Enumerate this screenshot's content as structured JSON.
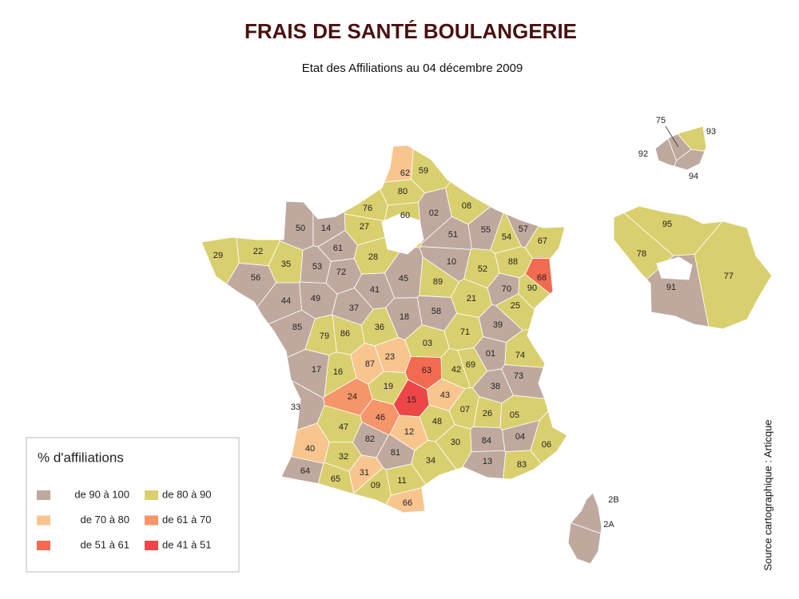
{
  "title": "FRAIS DE SANTÉ BOULANGERIE",
  "subtitle": "Etat des Affiliations au 04 décembre 2009",
  "source": "Source cartographique : Articque",
  "legend": {
    "title": "% d'affiliations",
    "classes": [
      {
        "label": "de 90 à 100",
        "color": "#bfa99f"
      },
      {
        "label": "de 80 à 90",
        "color": "#d9cf6e"
      },
      {
        "label": "de 70 à 80",
        "color": "#f8c58f"
      },
      {
        "label": "de 61 à 70",
        "color": "#f5956a"
      },
      {
        "label": "de 51 à 61",
        "color": "#f26b50"
      },
      {
        "label": "de 41 à 51",
        "color": "#ee4647"
      }
    ]
  },
  "departments": [
    {
      "code": "62",
      "class": 2
    },
    {
      "code": "59",
      "class": 1
    },
    {
      "code": "80",
      "class": 1
    },
    {
      "code": "76",
      "class": 1
    },
    {
      "code": "60",
      "class": 1
    },
    {
      "code": "02",
      "class": 0
    },
    {
      "code": "08",
      "class": 1
    },
    {
      "code": "50",
      "class": 0
    },
    {
      "code": "14",
      "class": 0
    },
    {
      "code": "27",
      "class": 1
    },
    {
      "code": "51",
      "class": 0
    },
    {
      "code": "55",
      "class": 0
    },
    {
      "code": "57",
      "class": 0
    },
    {
      "code": "54",
      "class": 1
    },
    {
      "code": "67",
      "class": 1
    },
    {
      "code": "29",
      "class": 1
    },
    {
      "code": "22",
      "class": 1
    },
    {
      "code": "35",
      "class": 1
    },
    {
      "code": "61",
      "class": 0
    },
    {
      "code": "28",
      "class": 1
    },
    {
      "code": "53",
      "class": 0
    },
    {
      "code": "72",
      "class": 0
    },
    {
      "code": "56",
      "class": 0
    },
    {
      "code": "10",
      "class": 0
    },
    {
      "code": "52",
      "class": 1
    },
    {
      "code": "88",
      "class": 1
    },
    {
      "code": "68",
      "class": 4
    },
    {
      "code": "45",
      "class": 0
    },
    {
      "code": "89",
      "class": 1
    },
    {
      "code": "41",
      "class": 0
    },
    {
      "code": "44",
      "class": 0
    },
    {
      "code": "49",
      "class": 0
    },
    {
      "code": "37",
      "class": 0
    },
    {
      "code": "70",
      "class": 0
    },
    {
      "code": "90",
      "class": 1
    },
    {
      "code": "21",
      "class": 1
    },
    {
      "code": "25",
      "class": 1
    },
    {
      "code": "18",
      "class": 0
    },
    {
      "code": "58",
      "class": 0
    },
    {
      "code": "85",
      "class": 0
    },
    {
      "code": "79",
      "class": 1
    },
    {
      "code": "86",
      "class": 1
    },
    {
      "code": "36",
      "class": 1
    },
    {
      "code": "71",
      "class": 1
    },
    {
      "code": "39",
      "class": 0
    },
    {
      "code": "03",
      "class": 1
    },
    {
      "code": "74",
      "class": 1
    },
    {
      "code": "01",
      "class": 0
    },
    {
      "code": "17",
      "class": 0
    },
    {
      "code": "16",
      "class": 1
    },
    {
      "code": "87",
      "class": 2
    },
    {
      "code": "23",
      "class": 2
    },
    {
      "code": "63",
      "class": 4
    },
    {
      "code": "42",
      "class": 1
    },
    {
      "code": "69",
      "class": 1
    },
    {
      "code": "73",
      "class": 0
    },
    {
      "code": "38",
      "class": 0
    },
    {
      "code": "19",
      "class": 1
    },
    {
      "code": "24",
      "class": 3
    },
    {
      "code": "15",
      "class": 5
    },
    {
      "code": "43",
      "class": 2
    },
    {
      "code": "33",
      "class": 0
    },
    {
      "code": "46",
      "class": 3
    },
    {
      "code": "07",
      "class": 1
    },
    {
      "code": "26",
      "class": 1
    },
    {
      "code": "05",
      "class": 1
    },
    {
      "code": "47",
      "class": 1
    },
    {
      "code": "48",
      "class": 1
    },
    {
      "code": "12",
      "class": 2
    },
    {
      "code": "04",
      "class": 0
    },
    {
      "code": "06",
      "class": 1
    },
    {
      "code": "82",
      "class": 0
    },
    {
      "code": "40",
      "class": 2
    },
    {
      "code": "30",
      "class": 1
    },
    {
      "code": "84",
      "class": 0
    },
    {
      "code": "81",
      "class": 0
    },
    {
      "code": "32",
      "class": 1
    },
    {
      "code": "34",
      "class": 1
    },
    {
      "code": "13",
      "class": 0
    },
    {
      "code": "83",
      "class": 1
    },
    {
      "code": "64",
      "class": 0
    },
    {
      "code": "31",
      "class": 2
    },
    {
      "code": "65",
      "class": 1
    },
    {
      "code": "09",
      "class": 1
    },
    {
      "code": "11",
      "class": 1
    },
    {
      "code": "66",
      "class": 2
    },
    {
      "code": "2B",
      "class": 0
    },
    {
      "code": "2A",
      "class": 0
    },
    {
      "code": "92",
      "class": 0
    },
    {
      "code": "75",
      "class": 0
    },
    {
      "code": "93",
      "class": 1
    },
    {
      "code": "94",
      "class": 0
    },
    {
      "code": "95",
      "class": 1
    },
    {
      "code": "78",
      "class": 1
    },
    {
      "code": "91",
      "class": 0
    },
    {
      "code": "77",
      "class": 1
    }
  ]
}
